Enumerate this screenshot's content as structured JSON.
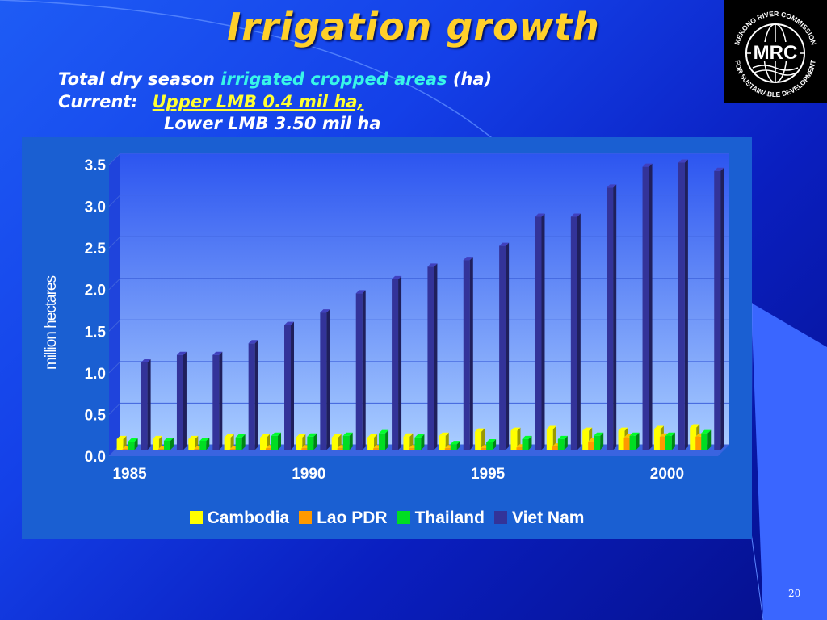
{
  "slide": {
    "title": "Irrigation growth",
    "line1_prefix": "Total dry season ",
    "line1_highlight": "irrigated cropped areas",
    "line1_suffix": " (ha)",
    "line2_label": "Current:",
    "line2_value": "Upper LMB 0.4 mil ha,",
    "line3_value": "Lower LMB  3.50 mil ha",
    "page_number": "20"
  },
  "logo": {
    "abbrev": "MRC",
    "ring_top": "MEKONG RIVER COMMISSION",
    "ring_bottom": "FOR SUSTAINABLE DEVELOPMENT"
  },
  "colors": {
    "title": "#ffd02a",
    "cambodia": "#ffff00",
    "lao": "#ff9900",
    "thailand": "#00dd22",
    "vietnam": "#333399"
  },
  "chart_data": {
    "type": "bar",
    "ylabel": "million hectares",
    "xlabel": "",
    "ylim": [
      0,
      3.5
    ],
    "y_ticks": [
      "0.0",
      "0.5",
      "1.0",
      "1.5",
      "2.0",
      "2.5",
      "3.0",
      "3.5"
    ],
    "x_tick_labels": [
      "1985",
      "1990",
      "1995",
      "2000"
    ],
    "categories": [
      "1985",
      "1986",
      "1987",
      "1988",
      "1989",
      "1990",
      "1991",
      "1992",
      "1993",
      "1994",
      "1995",
      "1996",
      "1997",
      "1998",
      "1999",
      "2000",
      "2001"
    ],
    "legend_position": "bottom",
    "grid": true,
    "series": [
      {
        "name": "Cambodia",
        "values": [
          0.13,
          0.13,
          0.13,
          0.15,
          0.15,
          0.15,
          0.15,
          0.15,
          0.16,
          0.17,
          0.22,
          0.23,
          0.25,
          0.23,
          0.23,
          0.25,
          0.27
        ]
      },
      {
        "name": "Lao PDR",
        "values": [
          0.01,
          0.01,
          0.01,
          0.01,
          0.02,
          0.02,
          0.02,
          0.02,
          0.02,
          0.02,
          0.02,
          0.03,
          0.04,
          0.1,
          0.15,
          0.16,
          0.16
        ]
      },
      {
        "name": "Thailand",
        "values": [
          0.1,
          0.11,
          0.11,
          0.15,
          0.17,
          0.16,
          0.17,
          0.2,
          0.15,
          0.07,
          0.09,
          0.13,
          0.13,
          0.17,
          0.17,
          0.17,
          0.2
        ]
      },
      {
        "name": "Viet Nam",
        "values": [
          1.05,
          1.14,
          1.14,
          1.28,
          1.5,
          1.65,
          1.88,
          2.05,
          2.2,
          2.28,
          2.45,
          2.8,
          2.8,
          3.15,
          3.4,
          3.45,
          3.35
        ]
      }
    ]
  }
}
